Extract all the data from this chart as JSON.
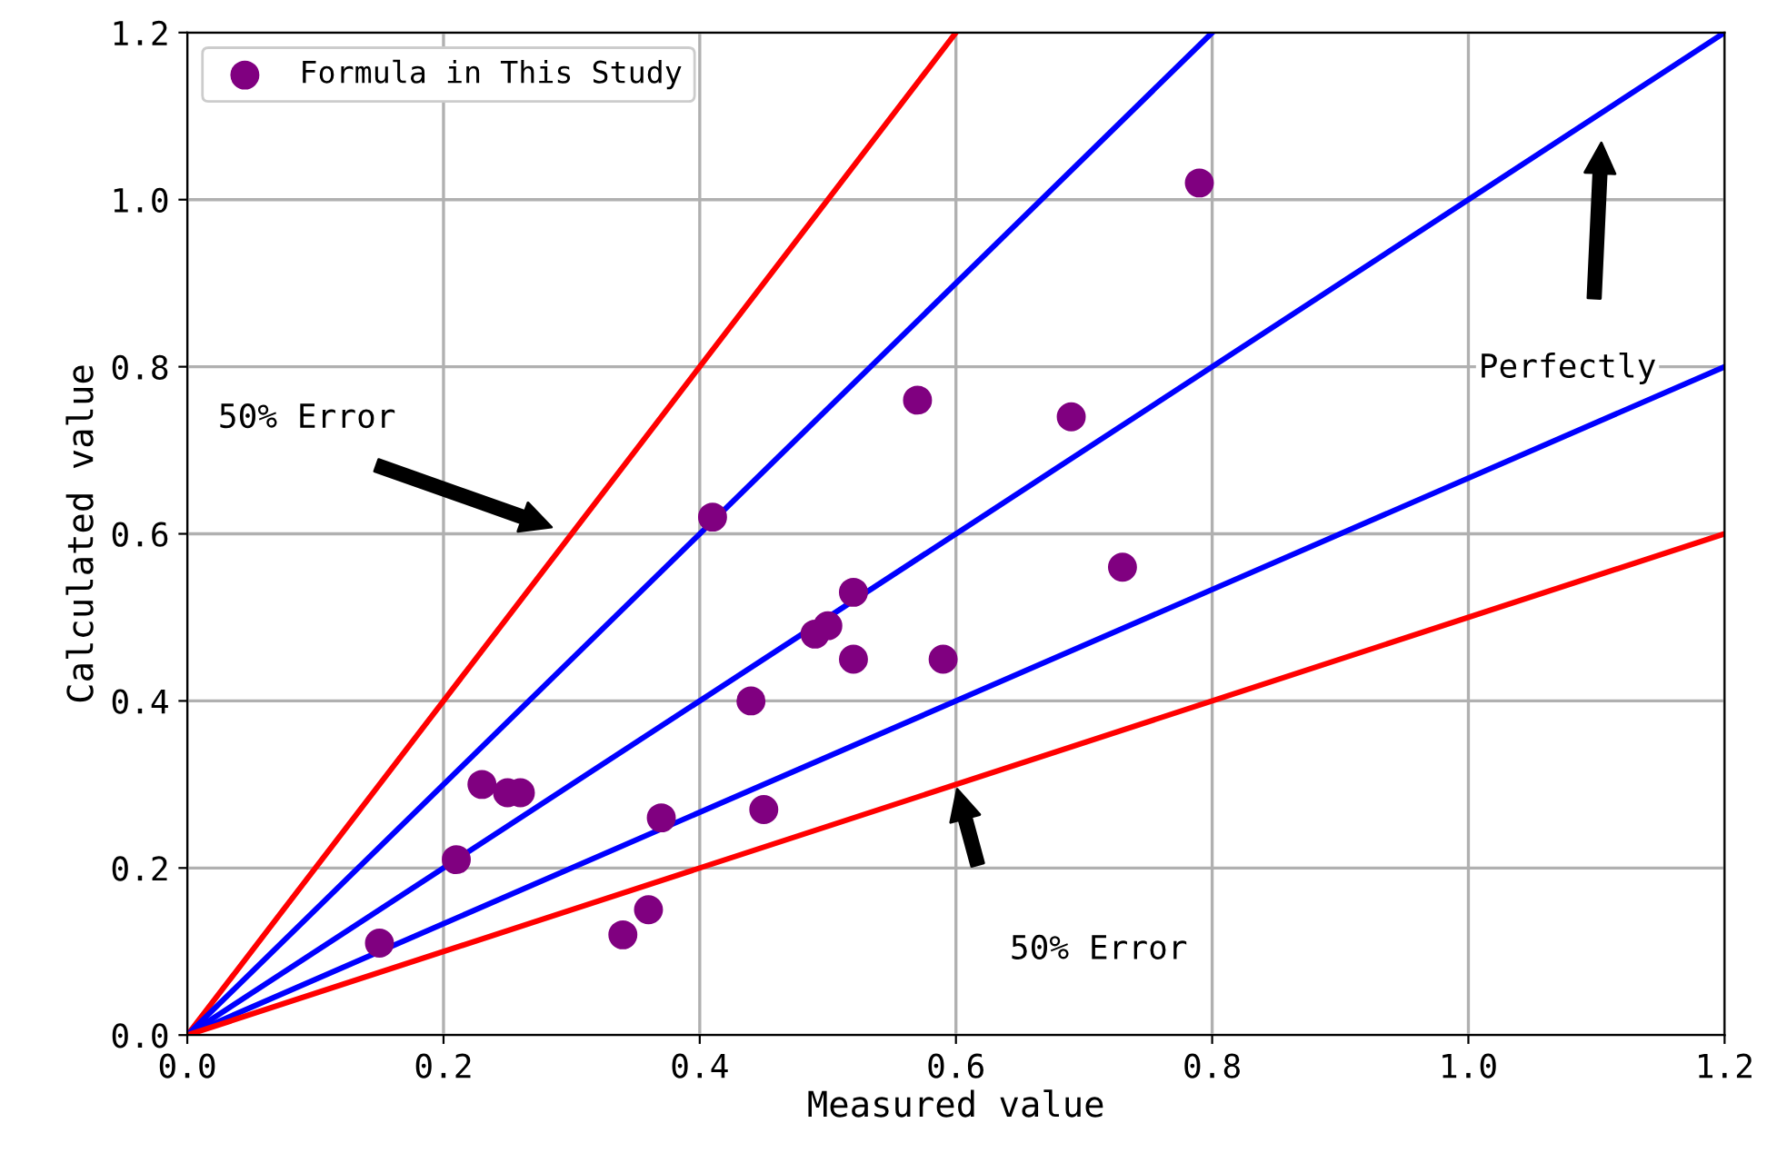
{
  "chart_data": {
    "type": "scatter",
    "xlabel": "Measured value",
    "ylabel": "Calculated value",
    "xlim": [
      0,
      1.2
    ],
    "ylim": [
      0,
      1.2
    ],
    "xticks": [
      {
        "value": 0,
        "label": "0.0"
      },
      0.2,
      0.4,
      0.6,
      0.8,
      {
        "value": 1.0,
        "label": "1.0"
      },
      1.2
    ],
    "yticks": [
      {
        "value": 0,
        "label": "0.0"
      },
      0.2,
      0.4,
      0.6,
      0.8,
      {
        "value": 1.0,
        "label": "1.0"
      },
      1.2
    ],
    "grid": true,
    "legend": "top left",
    "series": [
      {
        "name": "Formula in This Study",
        "color": "#800080",
        "x": [
          0.15,
          0.21,
          0.23,
          0.25,
          0.26,
          0.34,
          0.36,
          0.37,
          0.41,
          0.44,
          0.45,
          0.49,
          0.5,
          0.52,
          0.52,
          0.57,
          0.59,
          0.69,
          0.73,
          0.79
        ],
        "values": [
          0.11,
          0.21,
          0.3,
          0.29,
          0.29,
          0.12,
          0.15,
          0.26,
          0.62,
          0.4,
          0.27,
          0.48,
          0.49,
          0.53,
          0.45,
          0.76,
          0.45,
          0.74,
          0.56,
          1.02
        ]
      },
      {
        "type": "line",
        "color": "#ff0000",
        "x": [
          0,
          0.6
        ],
        "values": [
          0,
          1.2
        ]
      },
      {
        "type": "line",
        "color": "#0000ff",
        "x": [
          0,
          0.8
        ],
        "values": [
          0,
          1.2
        ]
      },
      {
        "type": "line",
        "color": "#0000ff",
        "x": [
          0,
          1.2
        ],
        "values": [
          0,
          1.2
        ]
      },
      {
        "type": "line",
        "color": "#0000ff",
        "x": [
          0,
          1.2
        ],
        "values": [
          0,
          0.8
        ]
      },
      {
        "type": "line",
        "color": "#ff0000",
        "x": [
          0,
          1.2
        ],
        "values": [
          0,
          0.6
        ]
      }
    ],
    "annotations": [
      "50% Error",
      "Perfectly",
      "50% Error"
    ]
  }
}
